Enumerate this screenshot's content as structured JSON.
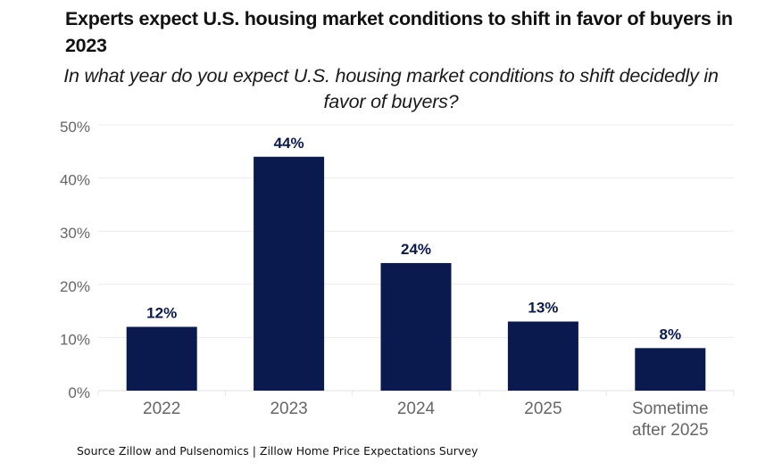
{
  "chart_data": {
    "type": "bar",
    "title": "Experts expect U.S. housing market conditions to shift in favor of buyers in 2023",
    "subtitle": "In what year do you expect U.S. housing market conditions to shift decidedly in favor of buyers?",
    "categories": [
      "2022",
      "2023",
      "2024",
      "2025",
      "Sometime after 2025"
    ],
    "category_lines": [
      [
        "2022"
      ],
      [
        "2023"
      ],
      [
        "2024"
      ],
      [
        "2025"
      ],
      [
        "Sometime",
        "after 2025"
      ]
    ],
    "values": [
      12,
      44,
      24,
      13,
      8
    ],
    "data_labels": [
      "12%",
      "44%",
      "24%",
      "13%",
      "8%"
    ],
    "xlabel": "",
    "ylabel": "",
    "ylim": [
      0,
      50
    ],
    "yticks": [
      0,
      10,
      20,
      30,
      40,
      50
    ],
    "ytick_labels": [
      "0%",
      "10%",
      "20%",
      "30%",
      "40%",
      "50%"
    ],
    "grid": true,
    "legend": "none",
    "bar_color": "#0a1a4e",
    "source": "Source Zillow and Pulsenomics | Zillow Home Price Expectations Survey"
  },
  "header": {
    "title": "Experts expect U.S. housing market conditions to shift in favor of buyers in 2023",
    "subtitle": "In what year do you expect U.S. housing market conditions to shift decidedly in favor of buyers?"
  },
  "footer": {
    "source": "Source Zillow and Pulsenomics | Zillow Home Price Expectations Survey"
  }
}
